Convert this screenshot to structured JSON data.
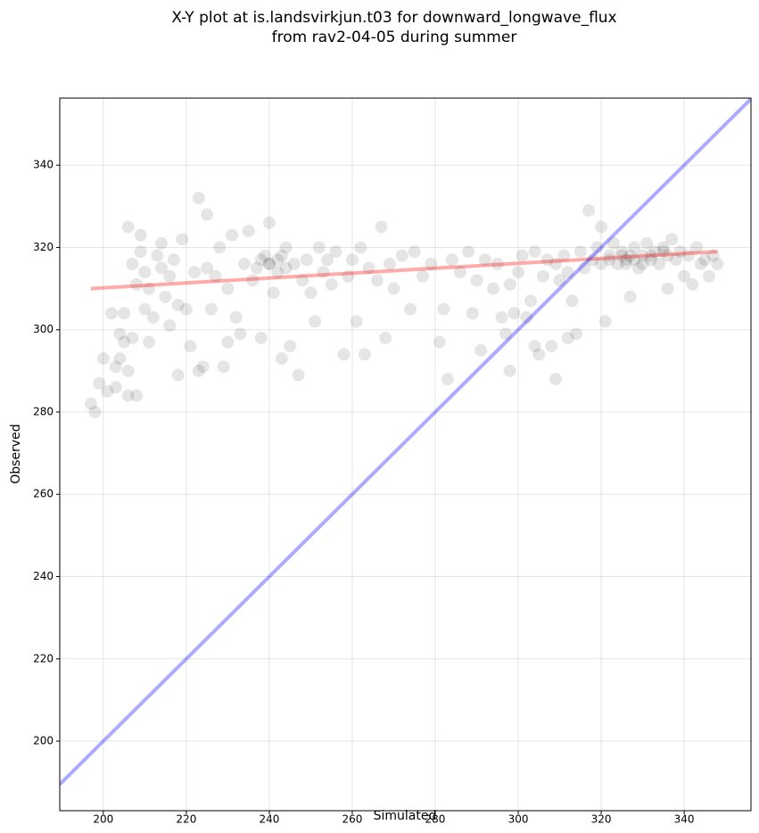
{
  "chart_data": {
    "type": "scatter",
    "title": "X-Y plot at is.landsvirkjun.t03 for downward_longwave_flux",
    "subtitle": "from rav2-04-05 during summer",
    "xlabel": "Simulated",
    "ylabel": "Observed",
    "xlim": [
      189.5,
      356.1
    ],
    "ylim": [
      183.1,
      356.3
    ],
    "xticks": [
      200,
      220,
      240,
      260,
      280,
      300,
      320,
      340
    ],
    "yticks": [
      200,
      220,
      240,
      260,
      280,
      300,
      320,
      340
    ],
    "grid": true,
    "series": [
      {
        "type": "scatter",
        "color": "#000000",
        "x": [
          197,
          198,
          199,
          200,
          201,
          202,
          203,
          203,
          204,
          204,
          205,
          205,
          206,
          206,
          206,
          207,
          207,
          208,
          208,
          209,
          209,
          210,
          210,
          211,
          211,
          212,
          213,
          214,
          214,
          215,
          216,
          216,
          217,
          218,
          218,
          219,
          220,
          221,
          222,
          223,
          223,
          224,
          225,
          225,
          226,
          227,
          228,
          229,
          230,
          230,
          231,
          232,
          233,
          234,
          235,
          236,
          237,
          238,
          239,
          240,
          240,
          241,
          242,
          243,
          243,
          244,
          245,
          246,
          247,
          248,
          249,
          250,
          251,
          252,
          253,
          254,
          255,
          256,
          258,
          259,
          260,
          261,
          262,
          263,
          264,
          266,
          267,
          268,
          269,
          270,
          272,
          274,
          275,
          277,
          279,
          281,
          282,
          283,
          284,
          286,
          288,
          289,
          290,
          291,
          292,
          294,
          295,
          296,
          297,
          298,
          298,
          299,
          300,
          301,
          302,
          303,
          304,
          304,
          305,
          306,
          307,
          308,
          309,
          309,
          310,
          311,
          312,
          312,
          313,
          314,
          315,
          316,
          317,
          318,
          319,
          320,
          320,
          321,
          322,
          323,
          324,
          325,
          326,
          327,
          327,
          328,
          329,
          330,
          331,
          332,
          333,
          334,
          335,
          336,
          336,
          337,
          338,
          339,
          340,
          341,
          342,
          343,
          344,
          345,
          346,
          347,
          348,
          240,
          242,
          244,
          238,
          325,
          328,
          330,
          332,
          322,
          335,
          326
        ],
        "values": [
          282,
          280,
          287,
          293,
          285,
          304,
          286,
          291,
          299,
          293,
          297,
          304,
          290,
          284,
          325,
          316,
          298,
          284,
          311,
          319,
          323,
          314,
          305,
          297,
          310,
          303,
          318,
          321,
          315,
          308,
          313,
          301,
          317,
          289,
          306,
          322,
          305,
          296,
          314,
          332,
          290,
          291,
          328,
          315,
          305,
          313,
          320,
          291,
          297,
          310,
          323,
          303,
          299,
          316,
          324,
          312,
          315,
          298,
          318,
          316,
          326,
          309,
          314,
          293,
          318,
          320,
          296,
          316,
          289,
          312,
          317,
          309,
          302,
          320,
          314,
          317,
          311,
          319,
          294,
          313,
          317,
          302,
          320,
          294,
          315,
          312,
          325,
          298,
          316,
          310,
          318,
          305,
          319,
          313,
          316,
          297,
          305,
          288,
          317,
          314,
          319,
          304,
          312,
          295,
          317,
          310,
          316,
          303,
          299,
          290,
          311,
          304,
          314,
          318,
          303,
          307,
          296,
          319,
          294,
          313,
          317,
          296,
          288,
          316,
          312,
          318,
          298,
          314,
          307,
          299,
          319,
          315,
          329,
          317,
          320,
          325,
          316,
          302,
          318,
          321,
          316,
          319,
          317,
          318,
          308,
          320,
          315,
          318,
          321,
          317,
          319,
          316,
          320,
          318,
          310,
          322,
          317,
          319,
          313,
          318,
          311,
          320,
          316,
          317,
          313,
          318,
          316,
          316,
          317,
          315,
          317,
          318,
          317,
          316,
          318,
          317,
          319,
          316
        ]
      },
      {
        "type": "line",
        "color": "#ff0000",
        "x": [
          197,
          348
        ],
        "values": [
          310,
          319
        ]
      },
      {
        "type": "line",
        "color": "#0000ff",
        "x": [
          189.5,
          356.1
        ],
        "values": [
          189.5,
          356.1
        ]
      }
    ]
  }
}
